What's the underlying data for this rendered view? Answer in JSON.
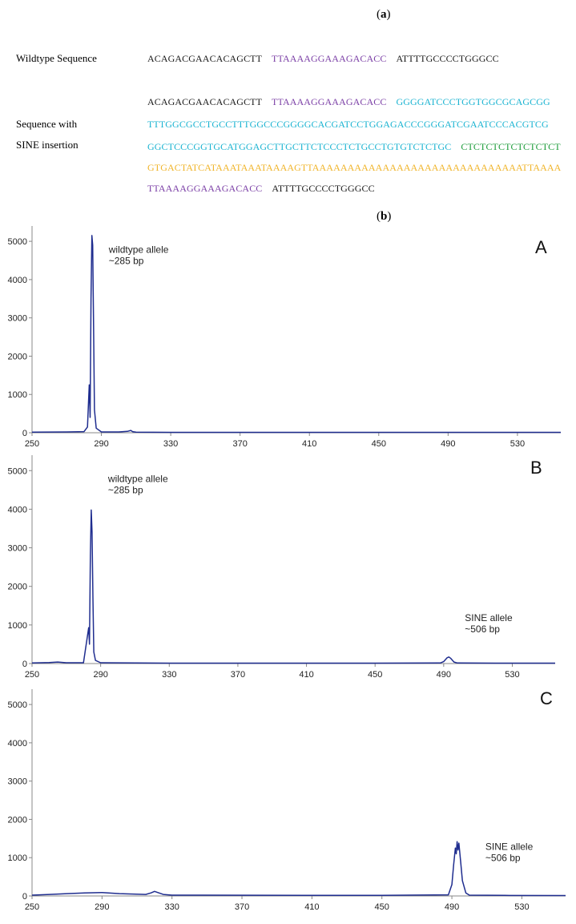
{
  "figure": {
    "label_a": "a",
    "label_b": "b"
  },
  "colors": {
    "black": "#1a1a1a",
    "flank": "#7b3fa6",
    "sine_body": "#19b3d1",
    "ct_repeat": "#1d9c3a",
    "polyA": "#f0b429",
    "trace": "#1f2d8f"
  },
  "sequences": {
    "wildtype_label": "Wildtype Sequence",
    "sine_label_1": "Sequence with",
    "sine_label_2": "SINE insertion",
    "wildtype": [
      {
        "text": "ACAGACGAACACAGCTT",
        "color": "black"
      },
      {
        "text": "TTAAAAGGAAAGACACC",
        "color": "flank"
      },
      {
        "text": "ATTTTGCCCCTGGGCC",
        "color": "black"
      }
    ],
    "insertion_lines": [
      [
        {
          "text": "ACAGACGAACACAGCTT",
          "color": "black"
        },
        {
          "text": "TTAAAAGGAAAGACACC",
          "color": "flank"
        },
        {
          "text": "GGGGATCCCTGGTGGCGCAGCGG",
          "color": "sine_body"
        }
      ],
      [
        {
          "text": "TTTGGCGCCTGCCTTTGGCCCGGGGCACGATCCTGGAGACCCGGGATCGAATCCCACGTCG",
          "color": "sine_body"
        }
      ],
      [
        {
          "text": "GGCTCCCGGTGCATGGAGCTTGCTTCTCCCTCTGCCTGTGTCTCTGC",
          "color": "sine_body"
        },
        {
          "text": "CTCTCTCTCTCTCTCT",
          "color": "ct_repeat"
        }
      ],
      [
        {
          "text": "GTGACTATCATAAATAAATAAAAGTTAAAAAAAAAAAAAAAAAAAAAAAAAAAAAATTAAAA",
          "color": "polyA"
        }
      ],
      [
        {
          "text": "TTAAAAGGAAAGACACC",
          "color": "flank"
        },
        {
          "text": "ATTTTGCCCCTGGGCC",
          "color": "black"
        }
      ]
    ]
  },
  "chart_data": [
    {
      "type": "line",
      "panel": "A",
      "xlim": [
        250,
        555
      ],
      "ylim": [
        0,
        5400
      ],
      "xticks": [
        250,
        290,
        330,
        370,
        410,
        450,
        490,
        530
      ],
      "yticks": [
        0,
        1000,
        2000,
        3000,
        4000,
        5000
      ],
      "annotations": [
        {
          "lines": [
            "wildtype allele",
            "~285 bp"
          ],
          "x": 285,
          "y": 4700
        }
      ],
      "x": [
        250,
        270,
        280,
        282,
        283,
        283.5,
        284,
        284.5,
        285,
        285.5,
        286,
        287,
        290,
        300,
        305,
        307,
        308,
        310,
        330,
        555
      ],
      "y": [
        15,
        20,
        30,
        150,
        1250,
        400,
        3500,
        5150,
        4900,
        2800,
        600,
        120,
        20,
        20,
        35,
        60,
        30,
        15,
        10,
        10
      ]
    },
    {
      "type": "line",
      "panel": "B",
      "xlim": [
        250,
        555
      ],
      "ylim": [
        0,
        5400
      ],
      "xticks": [
        250,
        290,
        330,
        370,
        410,
        450,
        490,
        530
      ],
      "yticks": [
        0,
        1000,
        2000,
        3000,
        4000,
        5000
      ],
      "annotations": [
        {
          "lines": [
            "wildtype allele",
            "~285 bp"
          ],
          "x": 285,
          "y": 4700
        },
        {
          "lines": [
            "SINE allele",
            "~506 bp"
          ],
          "x": 493,
          "y": 1100
        }
      ],
      "x": [
        250,
        260,
        265,
        270,
        280,
        283,
        283.5,
        284,
        284.5,
        285,
        285.5,
        286,
        287,
        290,
        330,
        450,
        488,
        490,
        492,
        493,
        494,
        496,
        498,
        520,
        555
      ],
      "y": [
        15,
        25,
        40,
        20,
        20,
        930,
        500,
        2800,
        3980,
        3400,
        1700,
        300,
        80,
        20,
        10,
        10,
        15,
        50,
        150,
        170,
        140,
        40,
        15,
        10,
        10
      ]
    },
    {
      "type": "line",
      "panel": "C",
      "xlim": [
        250,
        555
      ],
      "ylim": [
        0,
        5400
      ],
      "xticks": [
        250,
        290,
        330,
        370,
        410,
        450,
        490,
        530
      ],
      "yticks": [
        0,
        1000,
        2000,
        3000,
        4000,
        5000
      ],
      "annotations": [
        {
          "lines": [
            "SINE allele",
            "~506 bp"
          ],
          "x": 500,
          "y": 1200
        }
      ],
      "x": [
        250,
        260,
        270,
        280,
        290,
        300,
        315,
        318,
        320,
        325,
        330,
        450,
        488,
        490,
        491,
        492,
        492.5,
        493,
        493.5,
        494,
        495,
        496,
        498,
        500,
        520,
        555
      ],
      "y": [
        20,
        40,
        60,
        80,
        90,
        60,
        40,
        80,
        120,
        40,
        20,
        15,
        30,
        300,
        800,
        1250,
        1100,
        1420,
        1200,
        1380,
        900,
        400,
        80,
        20,
        15,
        10
      ]
    }
  ]
}
